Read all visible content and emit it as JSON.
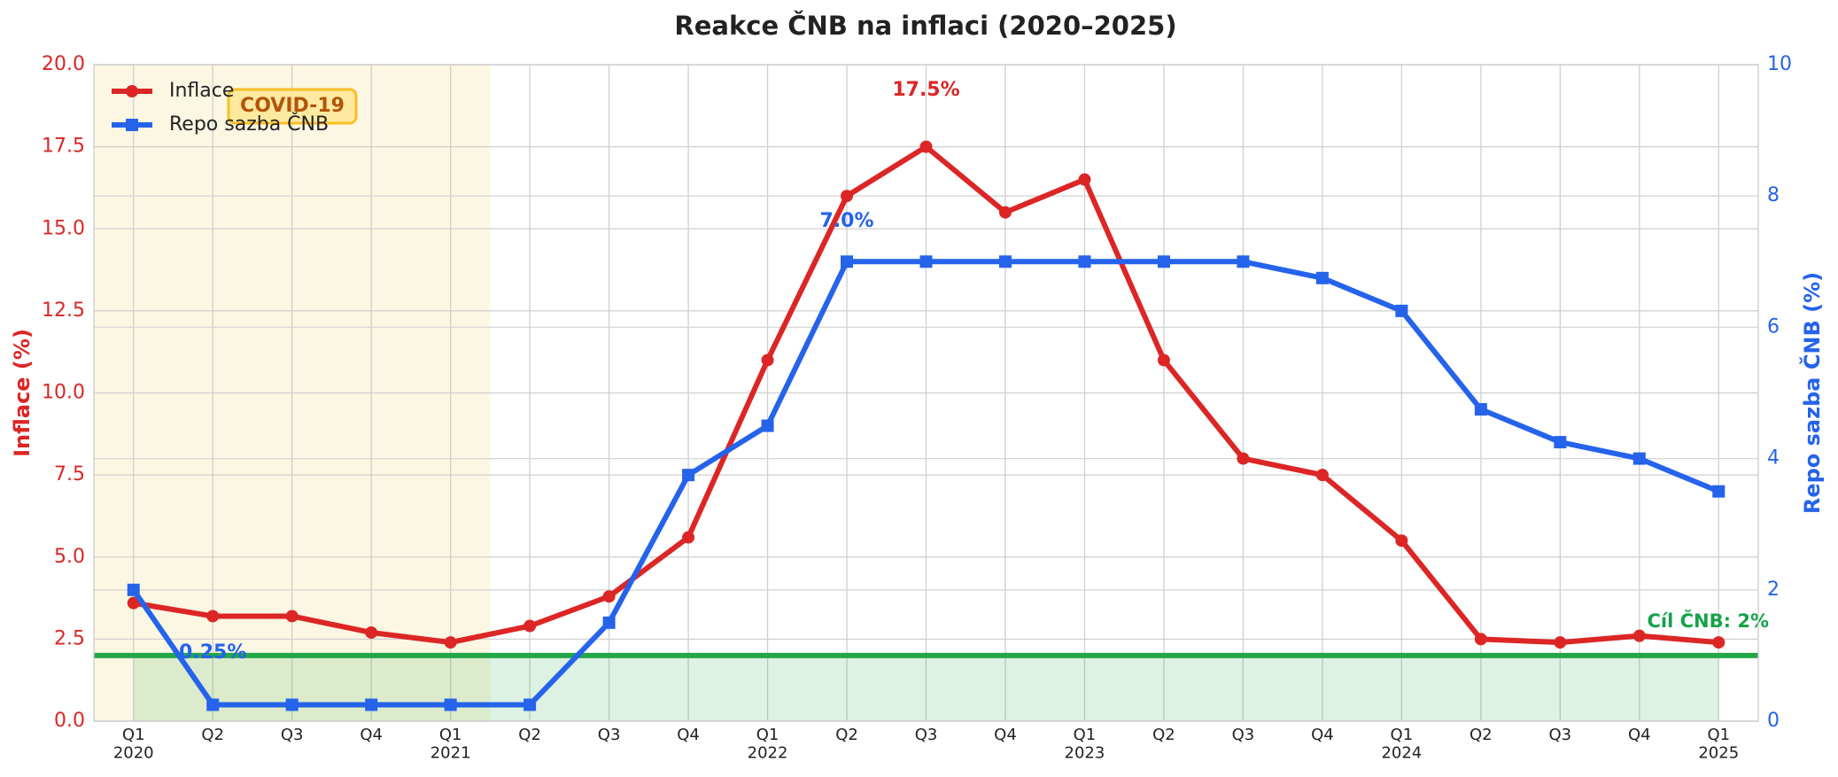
{
  "chart_data": {
    "type": "line",
    "title": "Reakce ČNB na inflaci (2020–2025)",
    "ylabel": "Inflace (%)",
    "y2label": "Repo sazba ČNB (%)",
    "categories": [
      "Q1\n2020",
      "Q2",
      "Q3",
      "Q4",
      "Q1\n2021",
      "Q2",
      "Q3",
      "Q4",
      "Q1\n2022",
      "Q2",
      "Q3",
      "Q4",
      "Q1\n2023",
      "Q2",
      "Q3",
      "Q4",
      "Q1\n2024",
      "Q2",
      "Q3",
      "Q4",
      "Q1\n2025"
    ],
    "series": [
      {
        "name": "Inflace",
        "color": "#dc2626",
        "marker": "circle",
        "values": [
          3.6,
          3.2,
          3.2,
          2.7,
          2.4,
          2.9,
          3.8,
          5.6,
          11.0,
          16.0,
          17.5,
          15.5,
          16.5,
          11.0,
          8.0,
          7.5,
          5.5,
          2.5,
          2.4,
          2.6,
          2.4
        ]
      },
      {
        "name": "Repo sazba ČNB",
        "color": "#2563eb",
        "marker": "square",
        "axis": "y2",
        "values": [
          2.0,
          0.25,
          0.25,
          0.25,
          0.25,
          0.25,
          1.5,
          3.75,
          4.5,
          7.0,
          7.0,
          7.0,
          7.0,
          7.0,
          7.0,
          6.75,
          6.25,
          4.75,
          4.25,
          4.0,
          3.5
        ]
      }
    ],
    "ylim": [
      0,
      20
    ],
    "yticks": [
      {
        "value": 0,
        "label": "0.0"
      },
      {
        "value": 2.5,
        "label": "2.5"
      },
      {
        "value": 5,
        "label": "5.0"
      },
      {
        "value": 7.5,
        "label": "7.5"
      },
      {
        "value": 10,
        "label": "10.0"
      },
      {
        "value": 12.5,
        "label": "12.5"
      },
      {
        "value": 15,
        "label": "15.0"
      },
      {
        "value": 17.5,
        "label": "17.5"
      },
      {
        "value": 20,
        "label": "20.0"
      }
    ],
    "y2lim": [
      0,
      10
    ],
    "y2ticks": [
      0,
      2,
      4,
      6,
      8,
      10
    ],
    "target": {
      "value": 2,
      "label": "Cíl ČNB: 2%",
      "color": "#22a648"
    },
    "annotations": [
      {
        "text": "COVID-19"
      },
      {
        "text": "17.5%"
      },
      {
        "text": "7.0%"
      },
      {
        "text": "0.25%"
      }
    ],
    "grid": true,
    "legend": "upper left"
  }
}
